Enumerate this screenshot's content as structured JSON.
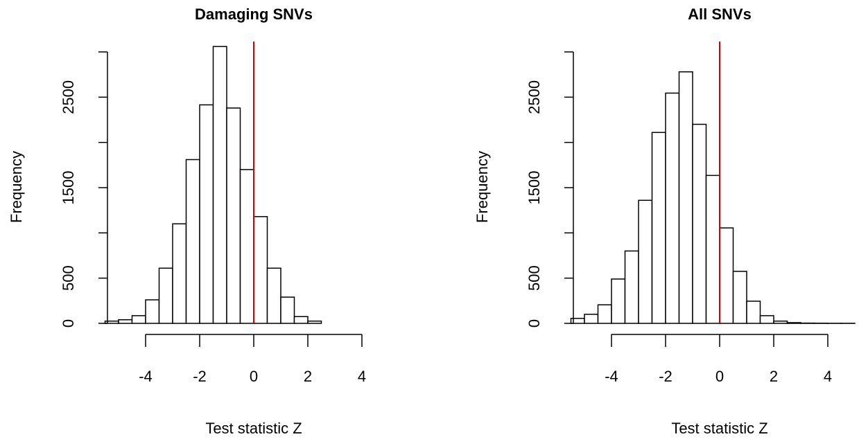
{
  "chart_data": [
    {
      "type": "histogram",
      "title": "Damaging SNVs",
      "x_label": "Test statistic Z",
      "y_label": "Frequency",
      "bins": [
        -5.5,
        -5,
        -4.5,
        -4,
        -3.5,
        -3,
        -2.5,
        -2,
        -1.5,
        -1,
        -0.5,
        0,
        0.5,
        1,
        1.5,
        2,
        2.5
      ],
      "values": [
        25,
        40,
        85,
        260,
        610,
        1100,
        1810,
        2415,
        3060,
        2380,
        1700,
        1180,
        610,
        290,
        75,
        25
      ],
      "color": "#ffffff",
      "edge_color": "#000000",
      "xlim": [
        -5.5,
        5.5
      ],
      "xticks": [
        -4,
        -2,
        0,
        2,
        4
      ],
      "ylim": [
        0,
        3000
      ],
      "yticks": [
        0,
        500,
        1500,
        2500
      ],
      "yticks_unlabeled": [
        1000,
        2000,
        3000
      ],
      "vline": 0,
      "vline_color": "#d40000"
    },
    {
      "type": "histogram",
      "title": "All SNVs",
      "x_label": "Test statistic Z",
      "y_label": "Frequency",
      "bins": [
        -5.5,
        -5,
        -4.5,
        -4,
        -3.5,
        -3,
        -2.5,
        -2,
        -1.5,
        -1,
        -0.5,
        0,
        0.5,
        1,
        1.5,
        2,
        2.5,
        3,
        3.5,
        4,
        4.5,
        5
      ],
      "values": [
        55,
        100,
        205,
        490,
        800,
        1360,
        2110,
        2545,
        2780,
        2200,
        1635,
        1055,
        575,
        245,
        85,
        25,
        8,
        3,
        2,
        1,
        1
      ],
      "color": "#ffffff",
      "edge_color": "#000000",
      "xlim": [
        -5.5,
        5.5
      ],
      "xticks": [
        -4,
        -2,
        0,
        2,
        4
      ],
      "ylim": [
        0,
        3000
      ],
      "yticks": [
        0,
        500,
        1500,
        2500
      ],
      "yticks_unlabeled": [
        1000,
        2000,
        3000
      ],
      "vline": 0,
      "vline_color": "#d40000"
    }
  ]
}
